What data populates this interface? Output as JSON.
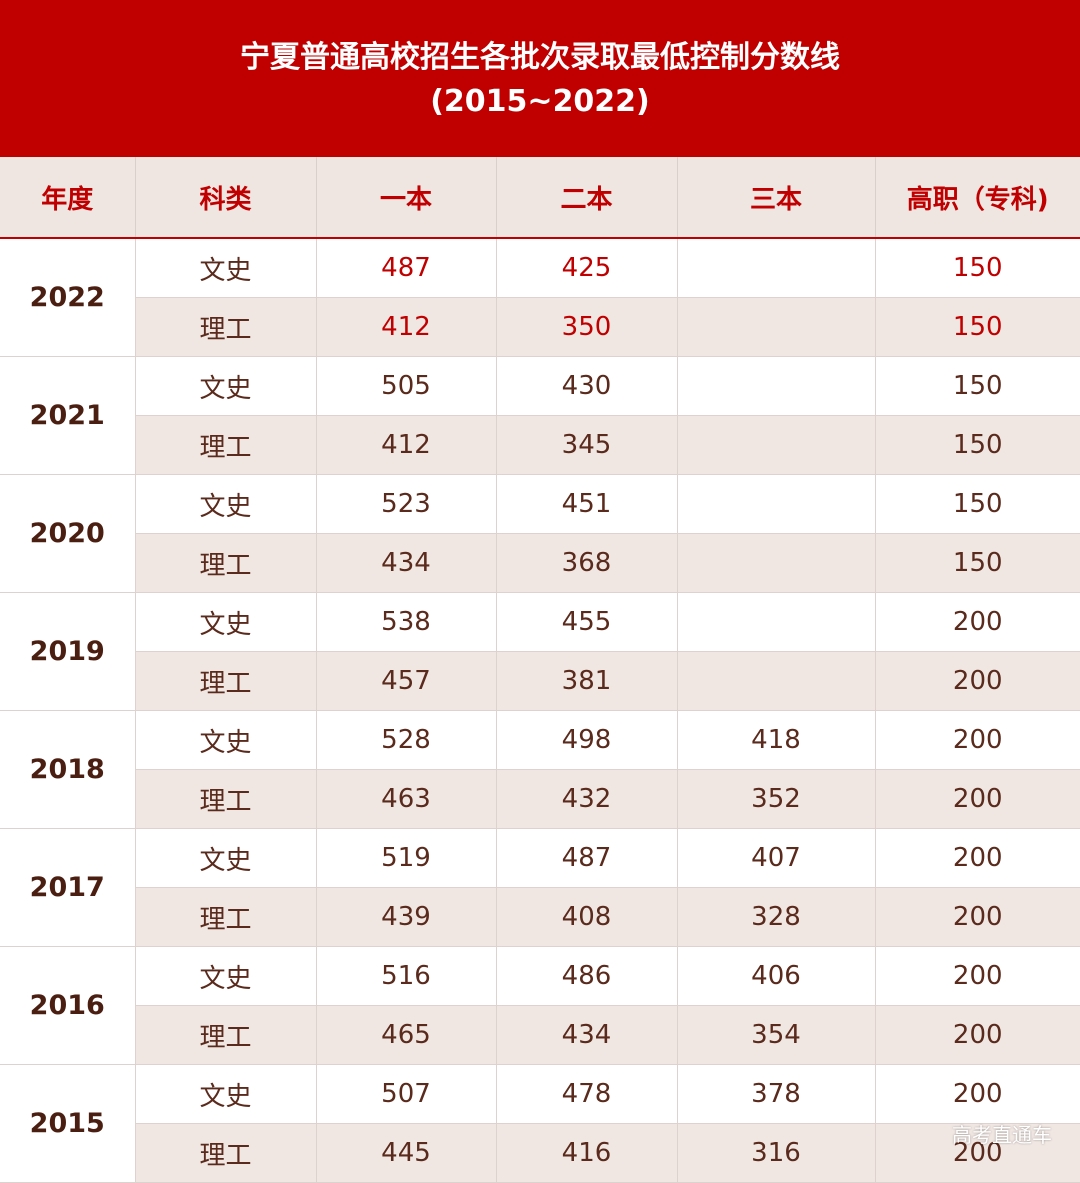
{
  "title": {
    "line1": "宁夏普通高校招生各批次录取最低控制分数线",
    "line2": "(2015~2022)"
  },
  "headers": [
    "年度",
    "科类",
    "一本",
    "二本",
    "三本",
    "高职（专科)"
  ],
  "rows": [
    {
      "year": "2022",
      "highlight": true,
      "items": [
        {
          "subject": "文史",
          "b1": "487",
          "b2": "425",
          "b3": "",
          "gz": "150"
        },
        {
          "subject": "理工",
          "b1": "412",
          "b2": "350",
          "b3": "",
          "gz": "150"
        }
      ]
    },
    {
      "year": "2021",
      "highlight": false,
      "items": [
        {
          "subject": "文史",
          "b1": "505",
          "b2": "430",
          "b3": "",
          "gz": "150"
        },
        {
          "subject": "理工",
          "b1": "412",
          "b2": "345",
          "b3": "",
          "gz": "150"
        }
      ]
    },
    {
      "year": "2020",
      "highlight": false,
      "items": [
        {
          "subject": "文史",
          "b1": "523",
          "b2": "451",
          "b3": "",
          "gz": "150"
        },
        {
          "subject": "理工",
          "b1": "434",
          "b2": "368",
          "b3": "",
          "gz": "150"
        }
      ]
    },
    {
      "year": "2019",
      "highlight": false,
      "items": [
        {
          "subject": "文史",
          "b1": "538",
          "b2": "455",
          "b3": "",
          "gz": "200"
        },
        {
          "subject": "理工",
          "b1": "457",
          "b2": "381",
          "b3": "",
          "gz": "200"
        }
      ]
    },
    {
      "year": "2018",
      "highlight": false,
      "items": [
        {
          "subject": "文史",
          "b1": "528",
          "b2": "498",
          "b3": "418",
          "gz": "200"
        },
        {
          "subject": "理工",
          "b1": "463",
          "b2": "432",
          "b3": "352",
          "gz": "200"
        }
      ]
    },
    {
      "year": "2017",
      "highlight": false,
      "items": [
        {
          "subject": "文史",
          "b1": "519",
          "b2": "487",
          "b3": "407",
          "gz": "200"
        },
        {
          "subject": "理工",
          "b1": "439",
          "b2": "408",
          "b3": "328",
          "gz": "200"
        }
      ]
    },
    {
      "year": "2016",
      "highlight": false,
      "items": [
        {
          "subject": "文史",
          "b1": "516",
          "b2": "486",
          "b3": "406",
          "gz": "200"
        },
        {
          "subject": "理工",
          "b1": "465",
          "b2": "434",
          "b3": "354",
          "gz": "200"
        }
      ]
    },
    {
      "year": "2015",
      "highlight": false,
      "items": [
        {
          "subject": "文史",
          "b1": "507",
          "b2": "478",
          "b3": "378",
          "gz": "200"
        },
        {
          "subject": "理工",
          "b1": "445",
          "b2": "416",
          "b3": "316",
          "gz": "200"
        }
      ]
    }
  ],
  "watermark": "高考直通车",
  "colors": {
    "banner": "#c00000",
    "header_bg": "#efe6e2",
    "header_text": "#c00000",
    "stripe": "#f0e6e2",
    "body_text": "#5a2a1c",
    "highlight_text": "#c00000"
  }
}
